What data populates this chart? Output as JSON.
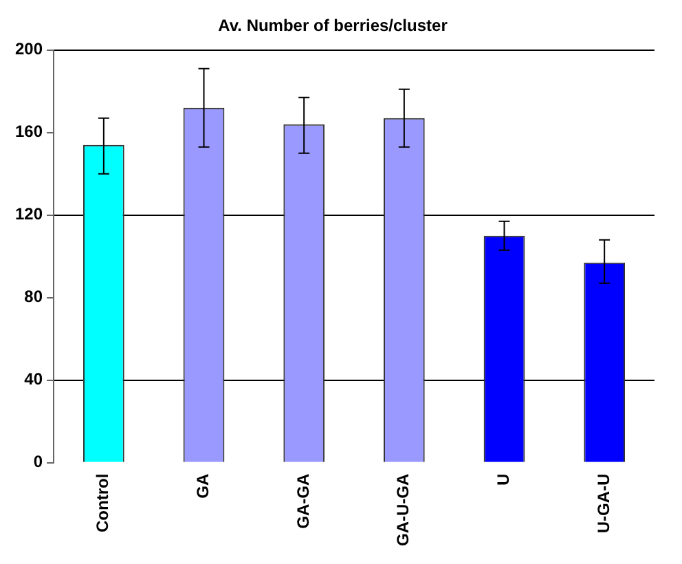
{
  "chart_data": {
    "type": "bar",
    "title": "Av. Number of berries/cluster",
    "categories": [
      "Control",
      "GA",
      "GA-GA",
      "GA-U-GA",
      "U",
      "U-GA-U"
    ],
    "values": [
      154,
      172,
      164,
      167,
      110,
      97
    ],
    "colors": [
      "#00ffff",
      "#9999ff",
      "#9999ff",
      "#9999ff",
      "#0000ff",
      "#0000ff"
    ],
    "errors": [
      [
        140,
        167
      ],
      [
        153,
        191
      ],
      [
        150,
        177
      ],
      [
        153,
        181
      ],
      [
        103,
        117
      ],
      [
        87,
        108
      ]
    ],
    "ylim": [
      0,
      200
    ],
    "yticks": [
      0,
      40,
      80,
      120,
      160,
      200
    ],
    "grid": "y"
  }
}
